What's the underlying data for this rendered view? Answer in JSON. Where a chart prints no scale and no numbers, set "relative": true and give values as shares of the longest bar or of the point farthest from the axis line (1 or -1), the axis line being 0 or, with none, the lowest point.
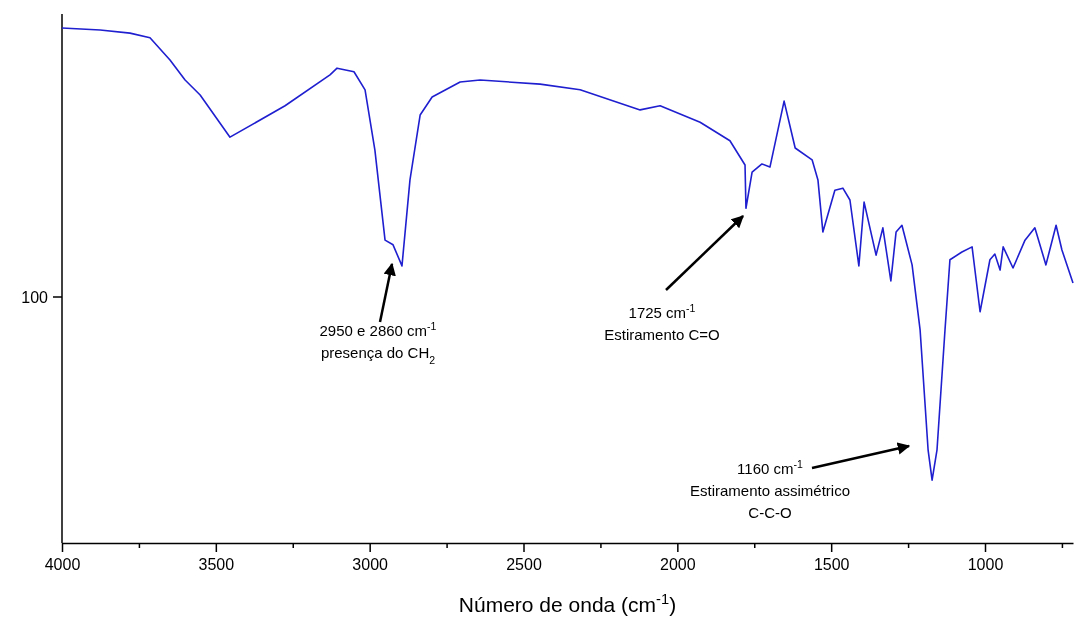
{
  "chart_data": {
    "type": "line",
    "relative": true,
    "xlabel": "Número de onda (cm$^{-1}$)",
    "xlim": [
      4000,
      714
    ],
    "xticks": [
      4000,
      {
        "value": 3750,
        "label": null
      },
      3500,
      {
        "value": 3250,
        "label": null
      },
      3000,
      {
        "value": 2750,
        "label": null
      },
      2500,
      {
        "value": 2250,
        "label": null
      },
      2000,
      {
        "value": 1750,
        "label": null
      },
      1500,
      {
        "value": 1250,
        "label": null
      },
      1000,
      {
        "value": 750,
        "label": null
      }
    ],
    "marker": "none",
    "line_style": "solid",
    "series": [
      {
        "color": "#1f1fd0",
        "x": [
          4000,
          3876,
          3779,
          3714,
          3649,
          3600,
          3551,
          3454,
          3275,
          3129,
          3106,
          3051,
          3015,
          2983,
          2950,
          2924,
          2895,
          2869,
          2836,
          2797,
          2706,
          2641,
          2446,
          2316,
          2121,
          2056,
          1926,
          1829,
          1780,
          1777,
          1757,
          1725,
          1699,
          1653,
          1617,
          1562,
          1543,
          1527,
          1488,
          1462,
          1439,
          1410,
          1393,
          1354,
          1332,
          1306,
          1289,
          1270,
          1237,
          1211,
          1185,
          1172,
          1156,
          1130,
          1114,
          1075,
          1042,
          1016,
          984,
          968,
          951,
          941,
          909,
          870,
          838,
          802,
          769,
          750,
          714
        ],
        "values": [
          1.0,
          0.996,
          0.99,
          0.981,
          0.938,
          0.899,
          0.87,
          0.788,
          0.849,
          0.909,
          0.922,
          0.915,
          0.88,
          0.763,
          0.588,
          0.579,
          0.538,
          0.705,
          0.831,
          0.866,
          0.895,
          0.899,
          0.891,
          0.88,
          0.841,
          0.849,
          0.817,
          0.781,
          0.734,
          0.65,
          0.72,
          0.736,
          0.73,
          0.858,
          0.767,
          0.744,
          0.705,
          0.604,
          0.685,
          0.689,
          0.666,
          0.538,
          0.662,
          0.559,
          0.612,
          0.509,
          0.604,
          0.617,
          0.54,
          0.414,
          0.181,
          0.122,
          0.181,
          0.414,
          0.55,
          0.565,
          0.575,
          0.449,
          0.55,
          0.561,
          0.53,
          0.575,
          0.534,
          0.588,
          0.612,
          0.54,
          0.617,
          0.569,
          0.505
        ]
      }
    ],
    "annotations": [
      "100",
      "2950 e 2860 cm$^{-1}$\npresença do CH$_{2}$",
      "1725 cm$^{-1}$\nEstiramento C=O",
      "1160 cm$^{-1}$\nEstiramento assimétrico\nC-C-O"
    ]
  }
}
